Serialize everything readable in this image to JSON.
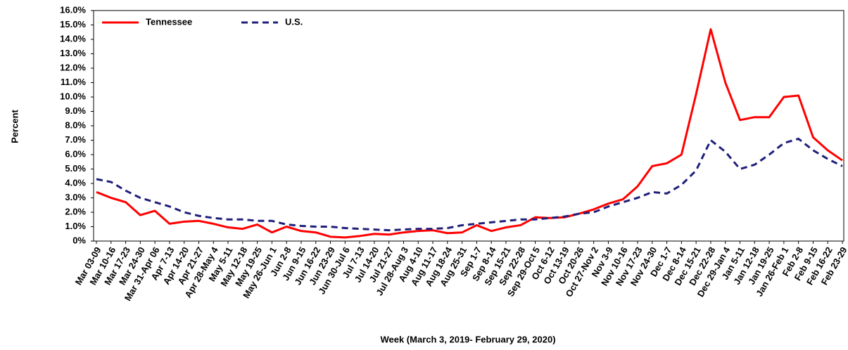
{
  "chart_data": {
    "type": "line",
    "y_label": "Percent",
    "x_label": "Week (March 3, 2019- February 29, 2020)",
    "categories": [
      "Mar 03-09",
      "Mar 10-16",
      "Mar 17-23",
      "Mar 24-30",
      "Mar 31-Apr 06",
      "Apr 7-13",
      "Apr 14-20",
      "Apr 21-27",
      "Apr 28-May 4",
      "May 5-11",
      "May 12-18",
      "May 19-25",
      "May 26-Jun 1",
      "Jun 2-8",
      "Jun 9-15",
      "Jun 16-22",
      "Jun 23-29",
      "Jun 30-Jul 6",
      "Jul 7-13",
      "Jul 14-20",
      "Jul 21-27",
      "Jul 28-Aug 3",
      "Aug 4-10",
      "Aug 11-17",
      "Aug 18-24",
      "Aug 25-31",
      "Sep 1-7",
      "Sep 8-14",
      "Sep 15-21",
      "Sep 22-28",
      "Sep 29-Oct 5",
      "Oct 6-12",
      "Oct 13-19",
      "Oct 20-26",
      "Oct 27-Nov 2",
      "Nov 3-9",
      "Nov 10-16",
      "Nov 17-23",
      "Nov 24-30",
      "Dec 1-7",
      "Dec 8-14",
      "Dec 15-21",
      "Dec 22-28",
      "Dec 29-Jan 4",
      "Jan 5-11",
      "Jan 12-18",
      "Jan 19-25",
      "Jan 26-Feb 1",
      "Feb 2-8",
      "Feb 9-15",
      "Feb 16-22",
      "Feb 23-29"
    ],
    "series": [
      {
        "name": "Tennessee",
        "color": "#ff0000",
        "dash": false,
        "values": [
          3.4,
          3.0,
          2.7,
          1.8,
          2.1,
          1.2,
          1.35,
          1.4,
          1.2,
          0.95,
          0.85,
          1.15,
          0.6,
          1.0,
          0.7,
          0.6,
          0.3,
          0.25,
          0.35,
          0.5,
          0.45,
          0.6,
          0.7,
          0.75,
          0.55,
          0.6,
          1.1,
          0.7,
          0.95,
          1.1,
          1.65,
          1.6,
          1.65,
          1.9,
          2.2,
          2.6,
          2.9,
          3.8,
          5.2,
          5.4,
          6.0,
          10.2,
          14.7,
          11.0,
          8.4,
          8.6,
          8.6,
          10.0,
          10.1,
          7.2,
          6.3,
          5.6
        ]
      },
      {
        "name": "U.S.",
        "color": "#1f1f7a",
        "dash": true,
        "values": [
          4.3,
          4.1,
          3.5,
          3.0,
          2.7,
          2.4,
          2.0,
          1.75,
          1.6,
          1.5,
          1.5,
          1.4,
          1.4,
          1.15,
          1.05,
          1.0,
          1.0,
          0.9,
          0.85,
          0.8,
          0.75,
          0.8,
          0.85,
          0.85,
          0.9,
          1.1,
          1.2,
          1.3,
          1.4,
          1.5,
          1.5,
          1.6,
          1.7,
          1.9,
          2.0,
          2.4,
          2.7,
          3.0,
          3.4,
          3.3,
          3.9,
          4.9,
          7.0,
          6.2,
          5.0,
          5.3,
          6.0,
          6.8,
          7.1,
          6.3,
          5.7,
          5.2
        ]
      }
    ],
    "ylim": [
      0,
      16
    ],
    "yticks": [
      {
        "value": 0,
        "label": "0%"
      },
      {
        "value": 1,
        "label": "1.0%"
      },
      {
        "value": 2,
        "label": "2.0%"
      },
      {
        "value": 3,
        "label": "3.0%"
      },
      {
        "value": 4,
        "label": "4.0%"
      },
      {
        "value": 5,
        "label": "5.0%"
      },
      {
        "value": 6,
        "label": "6.0%"
      },
      {
        "value": 7,
        "label": "7.0%"
      },
      {
        "value": 8,
        "label": "8.0%"
      },
      {
        "value": 9,
        "label": "9.0%"
      },
      {
        "value": 10,
        "label": "10.0%"
      },
      {
        "value": 11,
        "label": "11.0%"
      },
      {
        "value": 12,
        "label": "12.0%"
      },
      {
        "value": 13,
        "label": "13.0%"
      },
      {
        "value": 14,
        "label": "14.0%"
      },
      {
        "value": 15,
        "label": "15.0%"
      },
      {
        "value": 16,
        "label": "16.0%"
      }
    ],
    "grid": false,
    "legend": "top-left"
  }
}
